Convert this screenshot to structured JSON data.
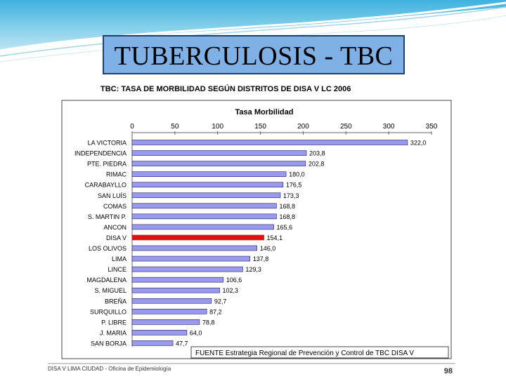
{
  "slide": {
    "title": "TUBERCULOSIS - TBC",
    "footer_left": "DISA V LIMA CIUDAD - Oficina de Epidemiología",
    "page_number": "98",
    "source_note": "FUENTE Estrategia Regional de Prevención y Control de TBC DISA V"
  },
  "colors": {
    "title_fill": "#7fb0e6",
    "bar_fill": "#9999ee",
    "bar_highlight": "#e01010",
    "bar_stroke": "#222266"
  },
  "chart_data": {
    "type": "bar",
    "orientation": "horizontal",
    "title": "TBC: TASA DE MORBILIDAD SEGÚN DISTRITOS DE DISA V LC   2006",
    "axis_title": "Tasa Morbilidad",
    "xlim": [
      0,
      350
    ],
    "ticks": [
      "0",
      "50",
      "100",
      "150",
      "200",
      "250",
      "300",
      "350"
    ],
    "tick_values": [
      0,
      50,
      100,
      150,
      200,
      250,
      300,
      350
    ],
    "grid": false,
    "highlight": "DISA V",
    "categories": [
      "LA VICTORIA",
      "INDEPENDENCIA",
      "PTE. PIEDRA",
      "RIMAC",
      "CARABAYLLO",
      "SAN LUÍS",
      "COMAS",
      "S. MARTIN P.",
      "ANCON",
      "DISA V",
      "LOS OLIVOS",
      "LIMA",
      "LINCE",
      "MAGDALENA",
      "S. MIGUEL",
      "BREÑA",
      "SURQUILLO",
      "P. LIBRE",
      "J. MARIA",
      "SAN BORJA"
    ],
    "values": [
      322.0,
      203.8,
      202.8,
      180.0,
      176.5,
      173.3,
      168.8,
      168.8,
      165.6,
      154.1,
      146.0,
      137.8,
      129.3,
      106.6,
      102.3,
      92.7,
      87.2,
      78.8,
      64.0,
      47.7
    ],
    "value_labels": [
      "322,0",
      "203,8",
      "202,8",
      "180,0",
      "176,5",
      "173,3",
      "168,8",
      "168,8",
      "165,6",
      "154,1",
      "146,0",
      "137,8",
      "129,3",
      "106,6",
      "102,3",
      "92,7",
      "87,2",
      "78,8",
      "64,0",
      "47,7"
    ]
  }
}
